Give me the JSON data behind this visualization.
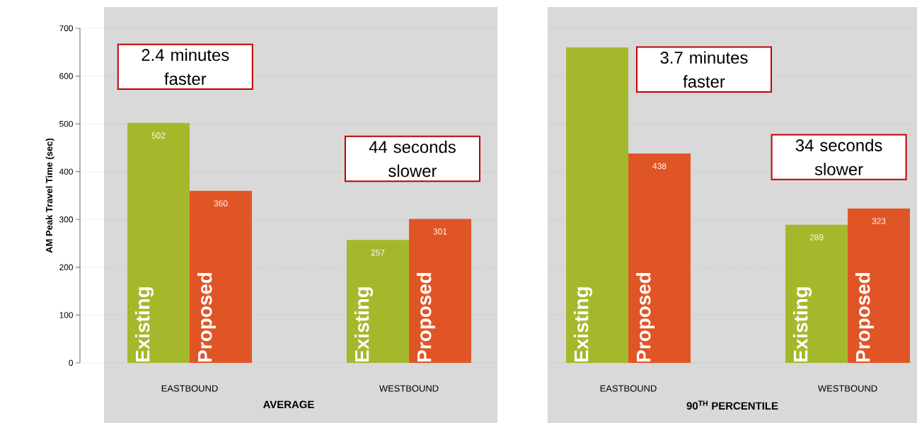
{
  "chart_data": [
    {
      "type": "bar",
      "categories": [
        "EASTBOUND",
        "WESTBOUND"
      ],
      "xlabel": "AVERAGE",
      "ylabel": "AM Peak Travel Time (sec)",
      "ylim": [
        0,
        700
      ],
      "yticks": [
        0,
        100,
        200,
        300,
        400,
        500,
        600,
        700
      ],
      "grid": "y",
      "series": [
        {
          "name": "Existing",
          "color": "#a5b82c",
          "values": [
            502,
            257
          ],
          "value_labels": [
            "502",
            "257"
          ]
        },
        {
          "name": "Proposed",
          "color": "#e05526",
          "values": [
            360,
            301
          ],
          "value_labels": [
            "360",
            "301"
          ]
        }
      ],
      "annotations": [
        "2.4 minutes faster",
        "44 seconds slower"
      ]
    },
    {
      "type": "bar",
      "categories": [
        "EASTBOUND",
        "WESTBOUND"
      ],
      "xlabel": "90$^{TH}$ PERCENTILE",
      "ylim": [
        0,
        700
      ],
      "yticks": [
        0,
        100,
        200,
        300,
        400,
        500,
        600,
        700
      ],
      "grid": "y",
      "tick_labels": "x",
      "series": [
        {
          "name": "Existing",
          "color": "#a5b82c",
          "values": [
            660,
            289
          ],
          "value_labels": [
            null,
            "289"
          ]
        },
        {
          "name": "Proposed",
          "color": "#e05526",
          "values": [
            438,
            323
          ],
          "value_labels": [
            "438",
            "323"
          ]
        }
      ],
      "annotations": [
        "3.7 minutes faster",
        "34 seconds slower"
      ]
    }
  ]
}
